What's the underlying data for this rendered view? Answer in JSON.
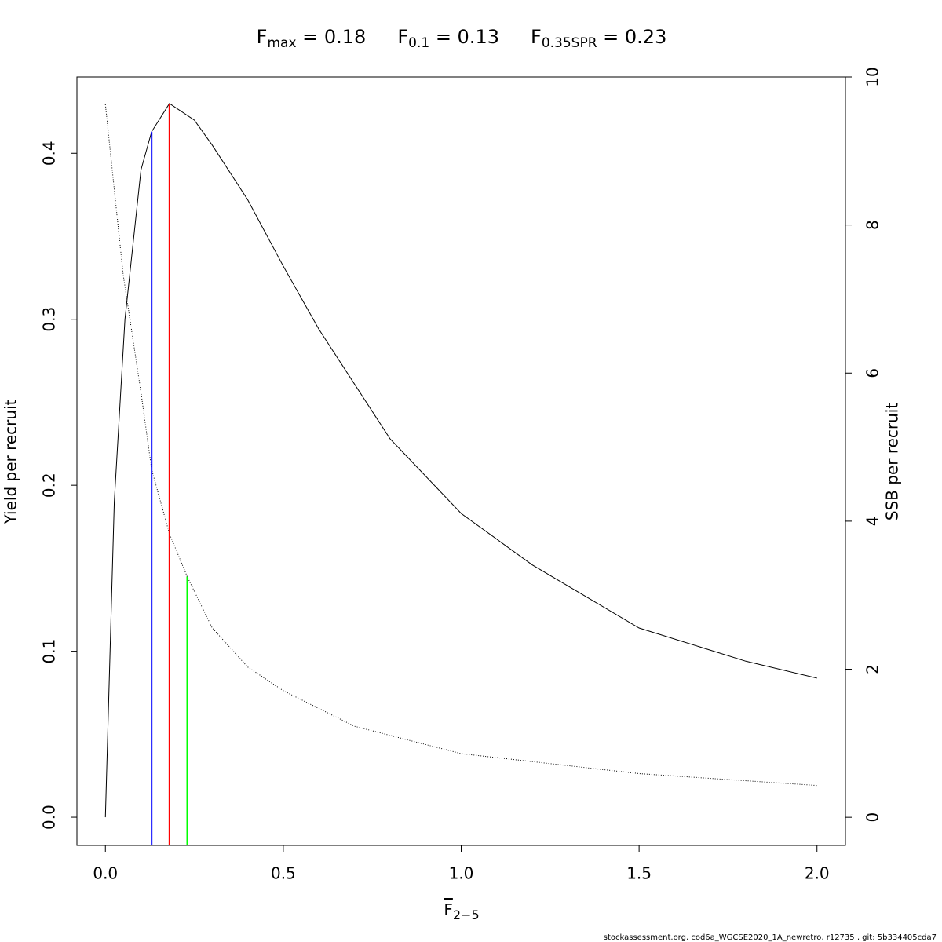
{
  "chart_data": {
    "type": "line",
    "title_parts": [
      {
        "text": "F",
        "subscript": "max",
        "suffix": " = 0.18"
      },
      {
        "text": "F",
        "subscript": "0.1",
        "suffix": " = 0.13"
      },
      {
        "text": "F",
        "subscript": "0.35SPR",
        "suffix": " = 0.23"
      }
    ],
    "x_label": {
      "text": "F",
      "subscript": "2−5"
    },
    "y_label": "Yield per recruit",
    "y2_label": "SSB per recruit",
    "footnote": "stockassessment.org, cod6a_WGCSE2020_1A_newretro, r12735 , git: 5b334405cda7",
    "xlim": [
      -0.08,
      2.08
    ],
    "ylim": [
      -0.017,
      0.446
    ],
    "y2lim": [
      -0.38,
      10
    ],
    "xticks": [
      {
        "value": 0,
        "label": "0.0"
      },
      {
        "value": 0.5,
        "label": "0.5"
      },
      {
        "value": 1,
        "label": "1.0"
      },
      {
        "value": 1.5,
        "label": "1.5"
      },
      {
        "value": 2,
        "label": "2.0"
      }
    ],
    "yticks": [
      {
        "value": 0,
        "label": "0.0"
      },
      0.1,
      0.2,
      0.3,
      0.4
    ],
    "y2ticks": [
      0,
      2,
      4,
      6,
      8,
      10
    ],
    "series": [
      {
        "color": "#000000",
        "dash": "solid",
        "axis": "y",
        "x": [
          0,
          0.025,
          0.055,
          0.1,
          0.13,
          0.18,
          0.25,
          0.3,
          0.4,
          0.5,
          0.6,
          0.7,
          0.8,
          1.0,
          1.2,
          1.5,
          1.8,
          2.0
        ],
        "values": [
          0,
          0.19,
          0.3,
          0.39,
          0.413,
          0.43,
          0.42,
          0.405,
          0.372,
          0.332,
          0.294,
          0.261,
          0.228,
          0.183,
          0.152,
          0.114,
          0.094,
          0.0838
        ]
      },
      {
        "color": "#000000",
        "dash": "dotted",
        "axis": "y2",
        "x": [
          0,
          0.05,
          0.1,
          0.13,
          0.18,
          0.23,
          0.3,
          0.4,
          0.5,
          0.7,
          1.0,
          1.5,
          2.0
        ],
        "values": [
          9.63,
          7.33,
          5.74,
          4.7,
          3.83,
          3.25,
          2.56,
          2.03,
          1.71,
          1.23,
          0.86,
          0.59,
          0.43
        ]
      }
    ],
    "reference_lines": [
      {
        "x": 0.13,
        "top": 0.413,
        "axis": "y",
        "color": "#0000ff"
      },
      {
        "x": 0.18,
        "top": 0.43,
        "axis": "y",
        "color": "#ff0000"
      },
      {
        "x": 0.23,
        "top": 3.25,
        "axis": "y2",
        "color": "#00ff00"
      }
    ]
  }
}
